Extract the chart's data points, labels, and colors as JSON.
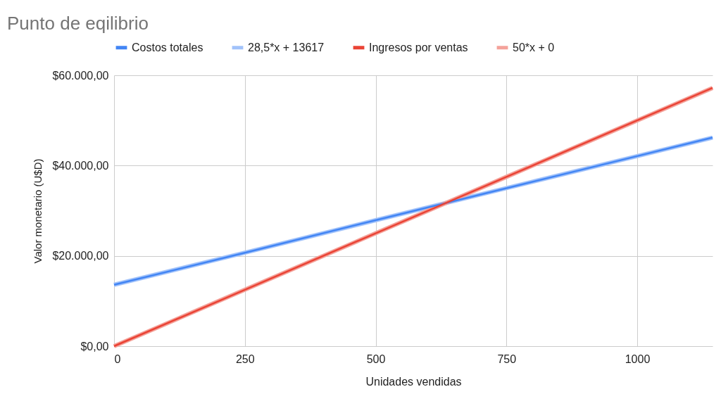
{
  "chart_data": {
    "type": "line",
    "title": "Punto de eqilibrio",
    "xlabel": "Unidades vendidas",
    "ylabel": "Valor monetario (U$D)",
    "x": [
      0,
      250,
      500,
      750,
      1000,
      1144
    ],
    "series": [
      {
        "name": "Costos totales",
        "color": "#4285f4",
        "values": [
          13600,
          20700,
          27900,
          35000,
          42100,
          46200
        ]
      },
      {
        "name": "28,5*x + 13617",
        "color": "#a1c2fa",
        "values": [
          13600,
          20700,
          27900,
          35000,
          42100,
          46200
        ]
      },
      {
        "name": "Ingresos por ventas",
        "color": "#ea4335",
        "values": [
          0,
          12500,
          25000,
          37500,
          50000,
          57200
        ]
      },
      {
        "name": "50*x + 0",
        "color": "#f4a29a",
        "values": [
          0,
          12500,
          25000,
          37500,
          50000,
          57200
        ]
      }
    ],
    "xlim": [
      0,
      1144
    ],
    "xticks": [
      0,
      250,
      500,
      750,
      1000
    ],
    "ylim": [
      0,
      60000
    ],
    "yticks": [
      {
        "value": 0,
        "label": "$0,00"
      },
      {
        "value": 20000,
        "label": "$20.000,00"
      },
      {
        "value": 40000,
        "label": "$40.000,00"
      },
      {
        "value": 60000,
        "label": "$60.000,00"
      }
    ],
    "grid": true,
    "legend": "top",
    "marker": "none",
    "line_style": "solid"
  }
}
